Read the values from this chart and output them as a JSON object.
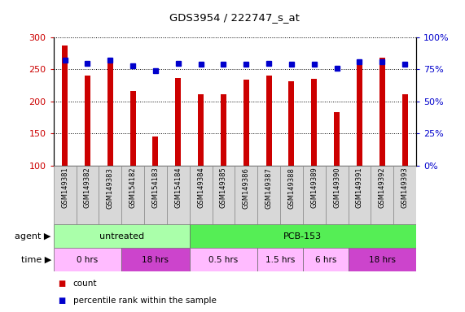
{
  "title": "GDS3954 / 222747_s_at",
  "samples": [
    "GSM149381",
    "GSM149382",
    "GSM149383",
    "GSM154182",
    "GSM154183",
    "GSM154184",
    "GSM149384",
    "GSM149385",
    "GSM149386",
    "GSM149387",
    "GSM149388",
    "GSM149389",
    "GSM149390",
    "GSM149391",
    "GSM149392",
    "GSM149393"
  ],
  "counts": [
    288,
    240,
    264,
    216,
    145,
    237,
    211,
    211,
    234,
    240,
    231,
    235,
    183,
    265,
    268,
    211
  ],
  "percentiles": [
    82,
    80,
    82,
    78,
    74,
    80,
    79,
    79,
    79,
    80,
    79,
    79,
    76,
    81,
    81,
    79
  ],
  "bar_color": "#cc0000",
  "dot_color": "#0000cc",
  "ylim_left": [
    100,
    300
  ],
  "ylim_right": [
    0,
    100
  ],
  "yticks_left": [
    100,
    150,
    200,
    250,
    300
  ],
  "yticks_right": [
    0,
    25,
    50,
    75,
    100
  ],
  "yticklabels_right": [
    "0%",
    "25%",
    "50%",
    "75%",
    "100%"
  ],
  "agent_groups": [
    {
      "label": "untreated",
      "start": 0,
      "end": 6,
      "color": "#aaffaa"
    },
    {
      "label": "PCB-153",
      "start": 6,
      "end": 16,
      "color": "#55ee55"
    }
  ],
  "time_groups": [
    {
      "label": "0 hrs",
      "start": 0,
      "end": 3,
      "color": "#ffbbff"
    },
    {
      "label": "18 hrs",
      "start": 3,
      "end": 6,
      "color": "#cc44cc"
    },
    {
      "label": "0.5 hrs",
      "start": 6,
      "end": 9,
      "color": "#ffbbff"
    },
    {
      "label": "1.5 hrs",
      "start": 9,
      "end": 11,
      "color": "#ffbbff"
    },
    {
      "label": "6 hrs",
      "start": 11,
      "end": 13,
      "color": "#ffbbff"
    },
    {
      "label": "18 hrs",
      "start": 13,
      "end": 16,
      "color": "#cc44cc"
    }
  ],
  "legend_items": [
    {
      "label": "count",
      "color": "#cc0000"
    },
    {
      "label": "percentile rank within the sample",
      "color": "#0000cc"
    }
  ],
  "label_color_left": "#cc0000",
  "label_color_right": "#0000cc"
}
